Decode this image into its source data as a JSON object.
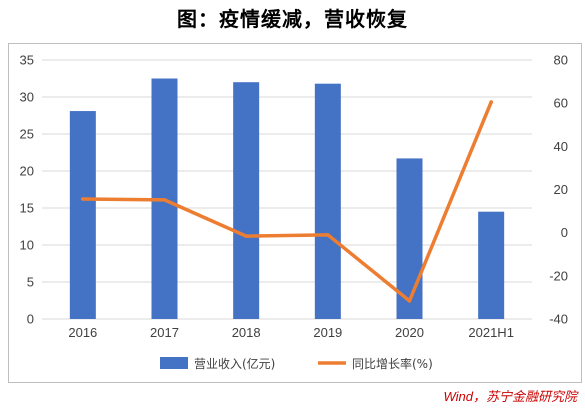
{
  "title": "图：疫情缓减，营收恢复",
  "source": "Wind，苏宁金融研究院",
  "colors": {
    "bar": "#4472c4",
    "line": "#ed7d31",
    "grid": "#d9d9d9"
  },
  "chart_data": {
    "type": "bar",
    "categories": [
      "2016",
      "2017",
      "2018",
      "2019",
      "2020",
      "2021H1"
    ],
    "series": [
      {
        "name": "营业收入(亿元)",
        "type": "bar",
        "axis": "left",
        "values": [
          28.1,
          32.5,
          32.0,
          31.8,
          21.7,
          14.5
        ]
      },
      {
        "name": "同比增长率(%)",
        "type": "line",
        "axis": "right",
        "values": [
          15.6,
          15.2,
          -1.6,
          -1.0,
          -31.6,
          60.5
        ]
      }
    ],
    "y_left": {
      "min": 0,
      "max": 35,
      "ticks": [
        0,
        5,
        10,
        15,
        20,
        25,
        30,
        35
      ]
    },
    "y_right": {
      "min": -40,
      "max": 80,
      "ticks": [
        -40,
        -20,
        0,
        20,
        40,
        60,
        80
      ]
    },
    "grid": true,
    "legend_position": "bottom"
  }
}
